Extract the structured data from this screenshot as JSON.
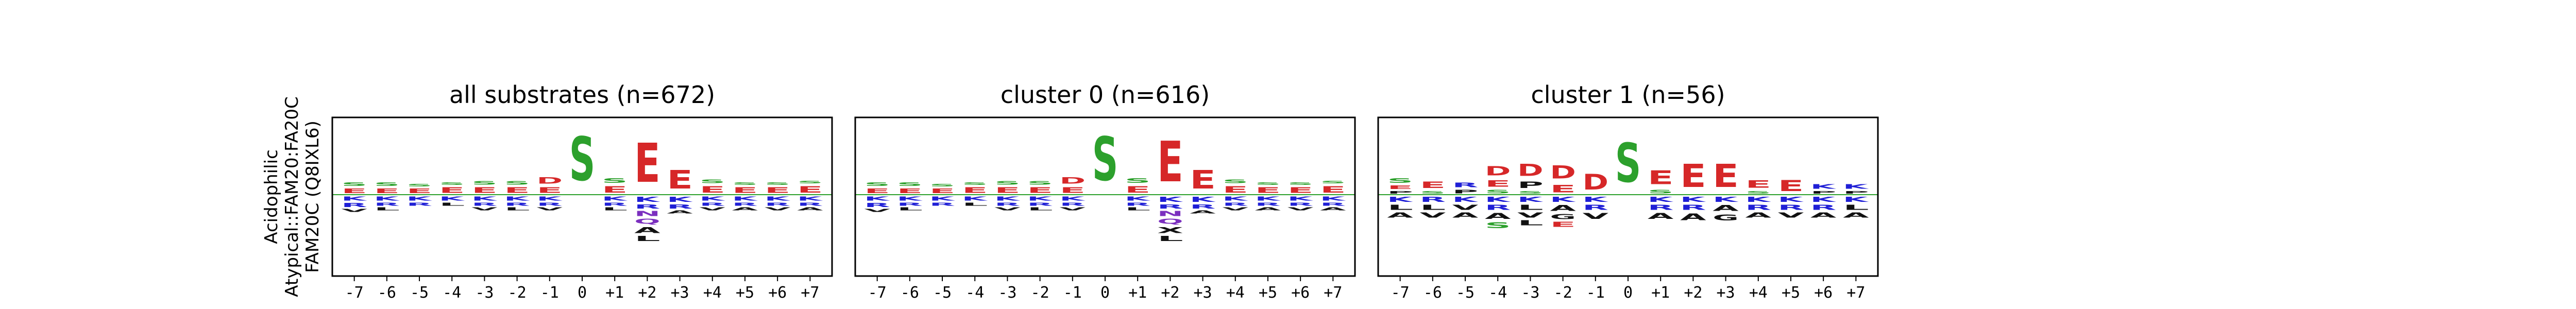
{
  "figure": {
    "row_label": [
      "Acidophilic",
      "Atypical::FAM20:FA20C",
      "FAM20C (Q8IXL6)"
    ]
  },
  "colors": {
    "acidic": "#d62728",
    "phospho": "#2ca02c",
    "basic": "#1f1fd6",
    "polar": "#7b2fbf",
    "hydrophobic": "#111111",
    "zero_line": "#2ca02c"
  },
  "chart_data": [
    {
      "type": "sequence-logo",
      "title": "all substrates (n=672)",
      "positions": [
        "-7",
        "-6",
        "-5",
        "-4",
        "-3",
        "-2",
        "-1",
        "0",
        "+1",
        "+2",
        "+3",
        "+4",
        "+5",
        "+6",
        "+7"
      ],
      "upper": [
        [
          [
            "E",
            0.1
          ],
          [
            "S",
            0.08
          ]
        ],
        [
          [
            "E",
            0.1
          ],
          [
            "S",
            0.08
          ]
        ],
        [
          [
            "E",
            0.1
          ],
          [
            "S",
            0.06
          ]
        ],
        [
          [
            "E",
            0.12
          ],
          [
            "S",
            0.06
          ]
        ],
        [
          [
            "E",
            0.12
          ],
          [
            "S",
            0.08
          ]
        ],
        [
          [
            "E",
            0.12
          ],
          [
            "S",
            0.08
          ]
        ],
        [
          [
            "E",
            0.12
          ],
          [
            "D",
            0.14
          ]
        ],
        [
          [
            "S",
            0.95
          ]
        ],
        [
          [
            "E",
            0.14
          ],
          [
            "S",
            0.1
          ]
        ],
        [
          [
            "E",
            0.85
          ]
        ],
        [
          [
            "E",
            0.4
          ]
        ],
        [
          [
            "E",
            0.14
          ],
          [
            "S",
            0.08
          ]
        ],
        [
          [
            "E",
            0.12
          ],
          [
            "S",
            0.06
          ]
        ],
        [
          [
            "E",
            0.12
          ],
          [
            "S",
            0.06
          ]
        ],
        [
          [
            "E",
            0.14
          ],
          [
            "S",
            0.06
          ]
        ]
      ],
      "lower": [
        [
          [
            "K",
            0.08
          ],
          [
            "R",
            0.08
          ],
          [
            "V",
            0.06
          ]
        ],
        [
          [
            "K",
            0.08
          ],
          [
            "R",
            0.06
          ],
          [
            "L",
            0.06
          ]
        ],
        [
          [
            "K",
            0.08
          ],
          [
            "R",
            0.06
          ]
        ],
        [
          [
            "K",
            0.08
          ],
          [
            "L",
            0.06
          ]
        ],
        [
          [
            "K",
            0.08
          ],
          [
            "R",
            0.06
          ],
          [
            "V",
            0.06
          ]
        ],
        [
          [
            "K",
            0.08
          ],
          [
            "R",
            0.06
          ],
          [
            "L",
            0.06
          ]
        ],
        [
          [
            "K",
            0.08
          ],
          [
            "R",
            0.06
          ],
          [
            "V",
            0.06
          ]
        ],
        [],
        [
          [
            "K",
            0.08
          ],
          [
            "R",
            0.06
          ],
          [
            "L",
            0.06
          ]
        ],
        [
          [
            "K",
            0.1
          ],
          [
            "R",
            0.08
          ],
          [
            "N",
            0.1
          ],
          [
            "Q",
            0.1
          ],
          [
            "A",
            0.12
          ],
          [
            "L",
            0.1
          ]
        ],
        [
          [
            "K",
            0.1
          ],
          [
            "R",
            0.08
          ],
          [
            "A",
            0.06
          ]
        ],
        [
          [
            "K",
            0.08
          ],
          [
            "R",
            0.06
          ],
          [
            "V",
            0.06
          ]
        ],
        [
          [
            "K",
            0.08
          ],
          [
            "R",
            0.06
          ],
          [
            "A",
            0.06
          ]
        ],
        [
          [
            "K",
            0.08
          ],
          [
            "R",
            0.06
          ],
          [
            "V",
            0.06
          ]
        ],
        [
          [
            "K",
            0.08
          ],
          [
            "R",
            0.06
          ],
          [
            "A",
            0.06
          ]
        ]
      ]
    },
    {
      "type": "sequence-logo",
      "title": "cluster 0 (n=616)",
      "positions": [
        "-7",
        "-6",
        "-5",
        "-4",
        "-3",
        "-2",
        "-1",
        "0",
        "+1",
        "+2",
        "+3",
        "+4",
        "+5",
        "+6",
        "+7"
      ],
      "upper": [
        [
          [
            "E",
            0.1
          ],
          [
            "S",
            0.08
          ]
        ],
        [
          [
            "E",
            0.1
          ],
          [
            "S",
            0.08
          ]
        ],
        [
          [
            "E",
            0.1
          ],
          [
            "S",
            0.06
          ]
        ],
        [
          [
            "E",
            0.12
          ],
          [
            "S",
            0.06
          ]
        ],
        [
          [
            "E",
            0.12
          ],
          [
            "S",
            0.08
          ]
        ],
        [
          [
            "E",
            0.12
          ],
          [
            "S",
            0.08
          ]
        ],
        [
          [
            "E",
            0.12
          ],
          [
            "D",
            0.14
          ]
        ],
        [
          [
            "S",
            0.95
          ]
        ],
        [
          [
            "E",
            0.14
          ],
          [
            "S",
            0.1
          ]
        ],
        [
          [
            "E",
            0.88
          ]
        ],
        [
          [
            "E",
            0.4
          ]
        ],
        [
          [
            "E",
            0.14
          ],
          [
            "S",
            0.08
          ]
        ],
        [
          [
            "E",
            0.12
          ],
          [
            "S",
            0.06
          ]
        ],
        [
          [
            "E",
            0.12
          ],
          [
            "S",
            0.06
          ]
        ],
        [
          [
            "E",
            0.14
          ],
          [
            "S",
            0.06
          ]
        ]
      ],
      "lower": [
        [
          [
            "K",
            0.08
          ],
          [
            "R",
            0.08
          ],
          [
            "V",
            0.06
          ]
        ],
        [
          [
            "K",
            0.08
          ],
          [
            "R",
            0.06
          ],
          [
            "L",
            0.06
          ]
        ],
        [
          [
            "K",
            0.08
          ],
          [
            "R",
            0.06
          ]
        ],
        [
          [
            "K",
            0.08
          ],
          [
            "L",
            0.06
          ]
        ],
        [
          [
            "K",
            0.08
          ],
          [
            "R",
            0.06
          ],
          [
            "V",
            0.06
          ]
        ],
        [
          [
            "K",
            0.08
          ],
          [
            "R",
            0.06
          ],
          [
            "L",
            0.06
          ]
        ],
        [
          [
            "K",
            0.08
          ],
          [
            "R",
            0.06
          ],
          [
            "V",
            0.06
          ]
        ],
        [],
        [
          [
            "K",
            0.08
          ],
          [
            "R",
            0.06
          ],
          [
            "L",
            0.06
          ]
        ],
        [
          [
            "K",
            0.1
          ],
          [
            "R",
            0.08
          ],
          [
            "N",
            0.1
          ],
          [
            "Q",
            0.1
          ],
          [
            "X",
            0.12
          ],
          [
            "L",
            0.1
          ]
        ],
        [
          [
            "K",
            0.1
          ],
          [
            "R",
            0.08
          ],
          [
            "A",
            0.06
          ]
        ],
        [
          [
            "K",
            0.08
          ],
          [
            "R",
            0.06
          ],
          [
            "V",
            0.06
          ]
        ],
        [
          [
            "K",
            0.08
          ],
          [
            "R",
            0.06
          ],
          [
            "A",
            0.06
          ]
        ],
        [
          [
            "K",
            0.08
          ],
          [
            "R",
            0.06
          ],
          [
            "V",
            0.06
          ]
        ],
        [
          [
            "K",
            0.08
          ],
          [
            "R",
            0.06
          ],
          [
            "A",
            0.06
          ]
        ]
      ]
    },
    {
      "type": "sequence-logo",
      "title": "cluster 1 (n=56)",
      "positions": [
        "-7",
        "-6",
        "-5",
        "-4",
        "-3",
        "-2",
        "-1",
        "0",
        "+1",
        "+2",
        "+3",
        "+4",
        "+5",
        "+6",
        "+7"
      ],
      "upper": [
        [
          [
            "P",
            0.06
          ],
          [
            "E",
            0.08
          ],
          [
            "S",
            0.1
          ]
        ],
        [
          [
            "S",
            0.06
          ],
          [
            "E",
            0.14
          ]
        ],
        [
          [
            "P",
            0.08
          ],
          [
            "R",
            0.1
          ]
        ],
        [
          [
            "S",
            0.08
          ],
          [
            "E",
            0.14
          ],
          [
            "D",
            0.2
          ]
        ],
        [
          [
            "S",
            0.06
          ],
          [
            "P",
            0.14
          ],
          [
            "D",
            0.26
          ]
        ],
        [
          [
            "E",
            0.16
          ],
          [
            "D",
            0.28
          ]
        ],
        [
          [
            "D",
            0.34
          ]
        ],
        [
          [
            "S",
            0.85
          ]
        ],
        [
          [
            "S",
            0.08
          ],
          [
            "E",
            0.3
          ]
        ],
        [
          [
            "E",
            0.5
          ]
        ],
        [
          [
            "E",
            0.5
          ]
        ],
        [
          [
            "S",
            0.06
          ],
          [
            "E",
            0.16
          ]
        ],
        [
          [
            "E",
            0.24
          ]
        ],
        [
          [
            "P",
            0.06
          ],
          [
            "K",
            0.1
          ]
        ],
        [
          [
            "P",
            0.06
          ],
          [
            "K",
            0.1
          ]
        ]
      ],
      "lower": [
        [
          [
            "K",
            0.1
          ],
          [
            "L",
            0.1
          ],
          [
            "A",
            0.1
          ]
        ],
        [
          [
            "R",
            0.1
          ],
          [
            "L",
            0.1
          ],
          [
            "V",
            0.1
          ]
        ],
        [
          [
            "K",
            0.1
          ],
          [
            "V",
            0.1
          ],
          [
            "A",
            0.1
          ]
        ],
        [
          [
            "K",
            0.1
          ],
          [
            "R",
            0.1
          ],
          [
            "A",
            0.12
          ],
          [
            "S",
            0.12
          ]
        ],
        [
          [
            "K",
            0.1
          ],
          [
            "L",
            0.1
          ],
          [
            "V",
            0.1
          ],
          [
            "L",
            0.1
          ]
        ],
        [
          [
            "K",
            0.1
          ],
          [
            "A",
            0.12
          ],
          [
            "G",
            0.1
          ],
          [
            "E",
            0.1
          ]
        ],
        [
          [
            "K",
            0.1
          ],
          [
            "R",
            0.1
          ],
          [
            "V",
            0.12
          ]
        ],
        [],
        [
          [
            "K",
            0.1
          ],
          [
            "R",
            0.1
          ],
          [
            "A",
            0.12
          ]
        ],
        [
          [
            "K",
            0.1
          ],
          [
            "R",
            0.1
          ],
          [
            "A",
            0.14
          ]
        ],
        [
          [
            "K",
            0.1
          ],
          [
            "A",
            0.12
          ],
          [
            "G",
            0.12
          ]
        ],
        [
          [
            "K",
            0.1
          ],
          [
            "R",
            0.1
          ],
          [
            "A",
            0.1
          ]
        ],
        [
          [
            "K",
            0.1
          ],
          [
            "R",
            0.1
          ],
          [
            "V",
            0.1
          ]
        ],
        [
          [
            "K",
            0.1
          ],
          [
            "R",
            0.1
          ],
          [
            "A",
            0.1
          ]
        ],
        [
          [
            "K",
            0.1
          ],
          [
            "L",
            0.1
          ],
          [
            "A",
            0.1
          ]
        ]
      ]
    }
  ]
}
